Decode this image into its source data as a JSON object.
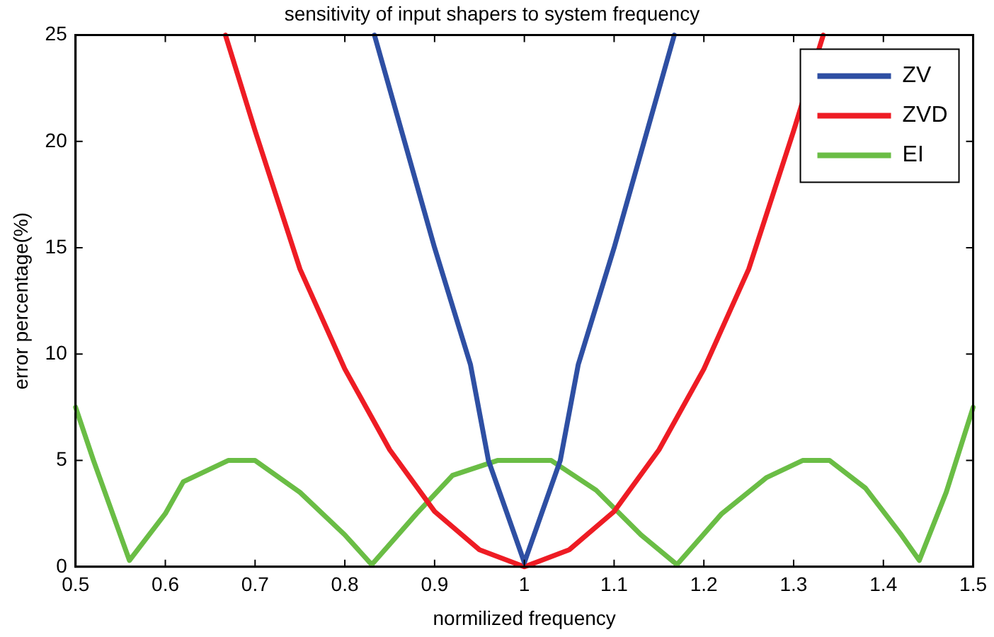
{
  "chart_data": {
    "type": "line",
    "title": "sensitivity of input shapers to system frequency",
    "xlabel": "normilized frequency",
    "ylabel": "error percentage(%)",
    "xlim": [
      0.5,
      1.5
    ],
    "xticks": [
      0.5,
      0.6,
      0.7,
      0.8,
      0.9,
      1,
      1.1,
      1.2,
      1.3,
      1.4,
      1.5
    ],
    "ylim": [
      0,
      25
    ],
    "yticks": [
      0,
      5,
      10,
      15,
      20,
      25
    ],
    "grid": false,
    "legend": "top right",
    "marker": "none",
    "series": [
      {
        "name": "ZV",
        "color": "#2e4fa3",
        "x": [
          0.833,
          0.9,
          0.94,
          0.96,
          1.0,
          1.04,
          1.06,
          1.1,
          1.167
        ],
        "values": [
          25,
          15,
          9.5,
          5,
          0.2,
          5,
          9.5,
          15,
          25
        ]
      },
      {
        "name": "ZVD",
        "color": "#ee1c24",
        "x": [
          0.667,
          0.7,
          0.75,
          0.8,
          0.85,
          0.9,
          0.95,
          1.0,
          1.05,
          1.1,
          1.15,
          1.2,
          1.25,
          1.3,
          1.333
        ],
        "values": [
          25,
          20.5,
          14,
          9.3,
          5.5,
          2.6,
          0.8,
          0,
          0.8,
          2.6,
          5.5,
          9.3,
          14,
          20.5,
          25
        ]
      },
      {
        "name": "EI",
        "color": "#6abd45",
        "x": [
          0.5,
          0.52,
          0.56,
          0.6,
          0.62,
          0.67,
          0.7,
          0.75,
          0.8,
          0.83,
          0.88,
          0.92,
          0.97,
          1.03,
          1.08,
          1.13,
          1.17,
          1.22,
          1.27,
          1.31,
          1.34,
          1.38,
          1.42,
          1.44,
          1.47,
          1.5
        ],
        "values": [
          7.5,
          5,
          0.3,
          2.5,
          4,
          5,
          5,
          3.5,
          1.5,
          0.1,
          2.5,
          4.3,
          5,
          5,
          3.6,
          1.5,
          0.1,
          2.5,
          4.2,
          5,
          5,
          3.7,
          1.5,
          0.3,
          3.5,
          7.5
        ]
      }
    ]
  }
}
